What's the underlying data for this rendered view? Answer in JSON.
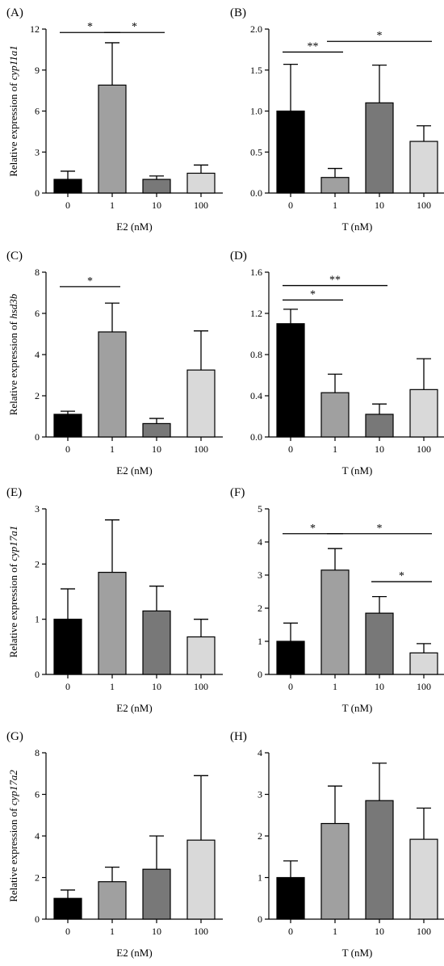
{
  "figure": {
    "ylabel_prefix": "Relative expression of ",
    "colors": [
      "#000000",
      "#a0a0a0",
      "#787878",
      "#d9d9d9"
    ]
  },
  "chart_data": [
    {
      "panel": "(A)",
      "type": "bar",
      "gene": "cyp11a1",
      "xlabel": "E2 (nM)",
      "categories": [
        "0",
        "1",
        "10",
        "100"
      ],
      "values": [
        1.0,
        7.9,
        1.0,
        1.45
      ],
      "errors": [
        0.6,
        3.1,
        0.25,
        0.6
      ],
      "ylim": [
        0,
        12
      ],
      "yticks": [
        0,
        3,
        6,
        9,
        12
      ],
      "ytick_labels": [
        "0",
        "3",
        "6",
        "9",
        "12"
      ],
      "significance": [
        {
          "from": 0,
          "to": 1,
          "y": 11.75,
          "label": "*"
        },
        {
          "from": 1,
          "to": 2,
          "y": 11.75,
          "label": "*"
        }
      ]
    },
    {
      "panel": "(B)",
      "type": "bar",
      "gene": "",
      "xlabel": "T (nM)",
      "categories": [
        "0",
        "1",
        "10",
        "100"
      ],
      "values": [
        1.0,
        0.19,
        1.1,
        0.63
      ],
      "errors": [
        0.57,
        0.11,
        0.46,
        0.19
      ],
      "ylim": [
        0,
        2.0
      ],
      "yticks": [
        0,
        0.5,
        1.0,
        1.5,
        2.0
      ],
      "ytick_labels": [
        "0.0",
        "0.5",
        "1.0",
        "1.5",
        "2.0"
      ],
      "significance": [
        {
          "from": 0,
          "to": 1,
          "y": 1.72,
          "label": "**"
        },
        {
          "from": 1,
          "to": 3,
          "y": 1.85,
          "label": "*"
        }
      ]
    },
    {
      "panel": "(C)",
      "type": "bar",
      "gene": "hsd3b",
      "xlabel": "E2 (nM)",
      "categories": [
        "0",
        "1",
        "10",
        "100"
      ],
      "values": [
        1.1,
        5.1,
        0.65,
        3.25
      ],
      "errors": [
        0.15,
        1.4,
        0.25,
        1.9
      ],
      "ylim": [
        0,
        8
      ],
      "yticks": [
        0,
        2,
        4,
        6,
        8
      ],
      "ytick_labels": [
        "0",
        "2",
        "4",
        "6",
        "8"
      ],
      "significance": [
        {
          "from": 0,
          "to": 1,
          "y": 7.3,
          "label": "*"
        }
      ]
    },
    {
      "panel": "(D)",
      "type": "bar",
      "gene": "",
      "xlabel": "T (nM)",
      "categories": [
        "0",
        "1",
        "10",
        "100"
      ],
      "values": [
        1.1,
        0.43,
        0.22,
        0.46
      ],
      "errors": [
        0.14,
        0.18,
        0.1,
        0.3
      ],
      "ylim": [
        0,
        1.6
      ],
      "yticks": [
        0,
        0.4,
        0.8,
        1.2,
        1.6
      ],
      "ytick_labels": [
        "0.0",
        "0.4",
        "0.8",
        "1.2",
        "1.6"
      ],
      "significance": [
        {
          "from": 0,
          "to": 1,
          "y": 1.33,
          "label": "*"
        },
        {
          "from": 0,
          "to": 2,
          "y": 1.47,
          "label": "**"
        }
      ]
    },
    {
      "panel": "(E)",
      "type": "bar",
      "gene": "cyp17a1",
      "xlabel": "E2 (nM)",
      "categories": [
        "0",
        "1",
        "10",
        "100"
      ],
      "values": [
        1.0,
        1.85,
        1.15,
        0.68
      ],
      "errors": [
        0.55,
        0.95,
        0.45,
        0.32
      ],
      "ylim": [
        0,
        3
      ],
      "yticks": [
        0,
        1,
        2,
        3
      ],
      "ytick_labels": [
        "0",
        "1",
        "2",
        "3"
      ],
      "significance": []
    },
    {
      "panel": "(F)",
      "type": "bar",
      "gene": "",
      "xlabel": "T (nM)",
      "categories": [
        "0",
        "1",
        "10",
        "100"
      ],
      "values": [
        1.0,
        3.15,
        1.85,
        0.65
      ],
      "errors": [
        0.55,
        0.65,
        0.5,
        0.28
      ],
      "ylim": [
        0,
        5
      ],
      "yticks": [
        0,
        1,
        2,
        3,
        4,
        5
      ],
      "ytick_labels": [
        "0",
        "1",
        "2",
        "3",
        "4",
        "5"
      ],
      "significance": [
        {
          "from": 0,
          "to": 1,
          "y": 4.25,
          "label": "*"
        },
        {
          "from": 1,
          "to": 3,
          "y": 4.25,
          "label": "*"
        },
        {
          "from": 2,
          "to": 3,
          "y": 2.8,
          "label": "*"
        }
      ]
    },
    {
      "panel": "(G)",
      "type": "bar",
      "gene": "cyp17a2",
      "xlabel": "E2 (nM)",
      "categories": [
        "0",
        "1",
        "10",
        "100"
      ],
      "values": [
        1.0,
        1.8,
        2.4,
        3.8
      ],
      "errors": [
        0.4,
        0.7,
        1.6,
        3.1
      ],
      "ylim": [
        0,
        8
      ],
      "yticks": [
        0,
        2,
        4,
        6,
        8
      ],
      "ytick_labels": [
        "0",
        "2",
        "4",
        "6",
        "8"
      ],
      "significance": []
    },
    {
      "panel": "(H)",
      "type": "bar",
      "gene": "",
      "xlabel": "T (nM)",
      "categories": [
        "0",
        "1",
        "10",
        "100"
      ],
      "values": [
        1.0,
        2.3,
        2.85,
        1.92
      ],
      "errors": [
        0.4,
        0.9,
        0.9,
        0.75
      ],
      "ylim": [
        0,
        4
      ],
      "yticks": [
        0,
        1,
        2,
        3,
        4
      ],
      "ytick_labels": [
        "0",
        "1",
        "2",
        "3",
        "4"
      ],
      "significance": []
    }
  ]
}
